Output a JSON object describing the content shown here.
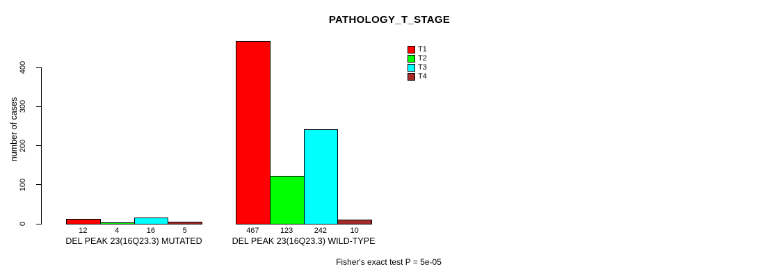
{
  "chart_data": {
    "type": "bar",
    "variant": "grouped",
    "title": "PATHOLOGY_T_STAGE",
    "ylabel": "number of cases",
    "xlabel": "",
    "ylim": [
      0,
      400
    ],
    "yticks": [
      0,
      100,
      200,
      300,
      400
    ],
    "grid": false,
    "legend_position": "top-right",
    "bar_value_labels_shown": true,
    "categories": [
      "DEL PEAK 23(16Q23.3) MUTATED",
      "DEL PEAK 23(16Q23.3) WILD-TYPE"
    ],
    "series": [
      {
        "name": "T1",
        "color": "#FF0000",
        "values": [
          12,
          467
        ]
      },
      {
        "name": "T2",
        "color": "#00FF00",
        "values": [
          4,
          123
        ]
      },
      {
        "name": "T3",
        "color": "#00FFFF",
        "values": [
          16,
          242
        ]
      },
      {
        "name": "T4",
        "color": "#A52A2A",
        "values": [
          5,
          10
        ]
      }
    ],
    "annotation": "Fisher's exact test P = 5e-05"
  },
  "colors": {
    "axis": "#000000",
    "text": "#000000",
    "background": "#FFFFFF"
  }
}
